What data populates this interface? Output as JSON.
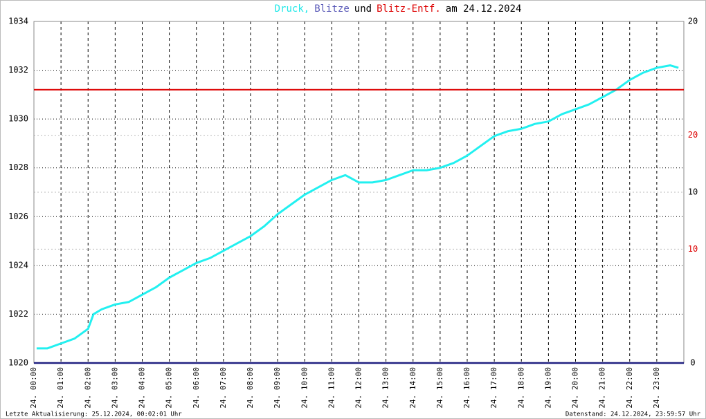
{
  "chart_data": {
    "type": "line",
    "title_parts": [
      {
        "text": "Druck,",
        "color": "#22e8e8"
      },
      {
        "text": "Blitze",
        "color": "#5a5ab8"
      },
      {
        "text": "und",
        "color": "#000000"
      },
      {
        "text": "Blitz-Entf.",
        "color": "#dd0000"
      },
      {
        "text": "am 24.12.2024",
        "color": "#000000"
      }
    ],
    "xlim": [
      0,
      24
    ],
    "xticks": [
      {
        "value": 0,
        "label": "24. 00:00"
      },
      {
        "value": 1,
        "label": "24. 01:00"
      },
      {
        "value": 2,
        "label": "24. 02:00"
      },
      {
        "value": 3,
        "label": "24. 03:00"
      },
      {
        "value": 4,
        "label": "24. 04:00"
      },
      {
        "value": 5,
        "label": "24. 05:00"
      },
      {
        "value": 6,
        "label": "24. 06:00"
      },
      {
        "value": 7,
        "label": "24. 07:00"
      },
      {
        "value": 8,
        "label": "24. 08:00"
      },
      {
        "value": 9,
        "label": "24. 09:00"
      },
      {
        "value": 10,
        "label": "24. 10:00"
      },
      {
        "value": 11,
        "label": "24. 11:00"
      },
      {
        "value": 12,
        "label": "24. 12:00"
      },
      {
        "value": 13,
        "label": "24. 13:00"
      },
      {
        "value": 14,
        "label": "24. 14:00"
      },
      {
        "value": 15,
        "label": "24. 15:00"
      },
      {
        "value": 16,
        "label": "24. 16:00"
      },
      {
        "value": 17,
        "label": "24. 17:00"
      },
      {
        "value": 18,
        "label": "24. 18:00"
      },
      {
        "value": 19,
        "label": "24. 19:00"
      },
      {
        "value": 20,
        "label": "24. 20:00"
      },
      {
        "value": 21,
        "label": "24. 21:00"
      },
      {
        "value": 22,
        "label": "24. 22:00"
      },
      {
        "value": 23,
        "label": "24. 23:00"
      }
    ],
    "ylim": [
      1020,
      1034
    ],
    "yticks": [
      1020,
      1022,
      1024,
      1026,
      1028,
      1030,
      1032,
      1034
    ],
    "y2lim": [
      0,
      20
    ],
    "y2ticks": [
      0,
      10,
      20
    ],
    "y2color": "#000000",
    "y3lim": [
      0,
      30
    ],
    "y3ticks": [
      10,
      20
    ],
    "y3color": "#dd0000",
    "grid": true,
    "series": [
      {
        "color": "#22f0f0",
        "width": 3,
        "axis": "y",
        "x": [
          0.1,
          0.5,
          1,
          1.5,
          2,
          2.2,
          2.5,
          3,
          3.5,
          4,
          4.5,
          5,
          5.5,
          6,
          6.5,
          7,
          7.5,
          8,
          8.5,
          9,
          9.5,
          10,
          10.5,
          11,
          11.5,
          12,
          12.5,
          13,
          13.5,
          14,
          14.5,
          15,
          15.5,
          16,
          16.5,
          17,
          17.5,
          18,
          18.5,
          19,
          19.5,
          20,
          20.5,
          21,
          21.5,
          22,
          22.5,
          23,
          23.5,
          23.8
        ],
        "values": [
          1020.6,
          1020.6,
          1020.8,
          1021.0,
          1021.4,
          1022.0,
          1022.2,
          1022.4,
          1022.5,
          1022.8,
          1023.1,
          1023.5,
          1023.8,
          1024.1,
          1024.3,
          1024.6,
          1024.9,
          1025.2,
          1025.6,
          1026.1,
          1026.5,
          1026.9,
          1027.2,
          1027.5,
          1027.7,
          1027.4,
          1027.4,
          1027.5,
          1027.7,
          1027.9,
          1027.9,
          1028.0,
          1028.2,
          1028.5,
          1028.9,
          1029.3,
          1029.5,
          1029.6,
          1029.8,
          1029.9,
          1030.2,
          1030.4,
          1030.6,
          1030.9,
          1031.2,
          1031.6,
          1031.9,
          1032.1,
          1032.2,
          1032.1
        ]
      },
      {
        "color": "#dd0000",
        "width": 2,
        "axis": "y3",
        "x": [
          0,
          24
        ],
        "values": [
          24,
          24
        ]
      },
      {
        "color": "#202080",
        "width": 2.5,
        "axis": "y2",
        "x": [
          0,
          24
        ],
        "values": [
          0,
          0
        ]
      }
    ],
    "footer_left": "Letzte Aktualisierung: 25.12.2024, 00:02:01 Uhr",
    "footer_right": "Datenstand: 24.12.2024, 23:59:57 Uhr"
  }
}
